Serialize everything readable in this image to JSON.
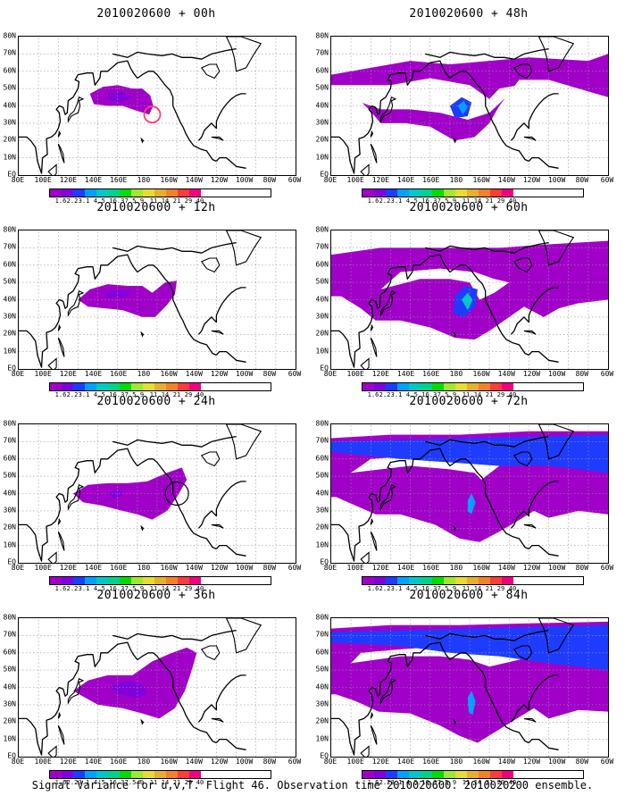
{
  "panels": [
    {
      "title": "2010020600 + 00h",
      "level": 0
    },
    {
      "title": "2010020600 + 48h",
      "level": 4
    },
    {
      "title": "2010020600 + 12h",
      "level": 1
    },
    {
      "title": "2010020600 + 60h",
      "level": 5
    },
    {
      "title": "2010020600 + 24h",
      "level": 2
    },
    {
      "title": "2010020600 + 72h",
      "level": 6
    },
    {
      "title": "2010020600 + 36h",
      "level": 3
    },
    {
      "title": "2010020600 + 84h",
      "level": 7
    }
  ],
  "y_labels": [
    "80N",
    "70N",
    "60N",
    "50N",
    "40N",
    "30N",
    "20N",
    "10N",
    "EQ"
  ],
  "x_labels": [
    "80E",
    "100E",
    "120E",
    "140E",
    "160E",
    "180",
    "160W",
    "140W",
    "120W",
    "100W",
    "80W",
    "60W"
  ],
  "colorbar": {
    "labels": [
      "1.6",
      "2.2",
      "3.1",
      "4",
      "5.1",
      "6.3",
      "7.5",
      "9",
      "11",
      "14",
      "21",
      "29",
      "40"
    ],
    "colors": [
      "#a000c8",
      "#8200dc",
      "#1e3cff",
      "#00a0ff",
      "#00c8c8",
      "#00d28c",
      "#00dc00",
      "#a0e632",
      "#e6dc32",
      "#e6af2d",
      "#f08228",
      "#fa3c3c",
      "#f00082"
    ]
  },
  "caption": "Signal Variance for u,v,T. Flight 46. Observation time 2010020600. 2010020200 ensemble."
}
